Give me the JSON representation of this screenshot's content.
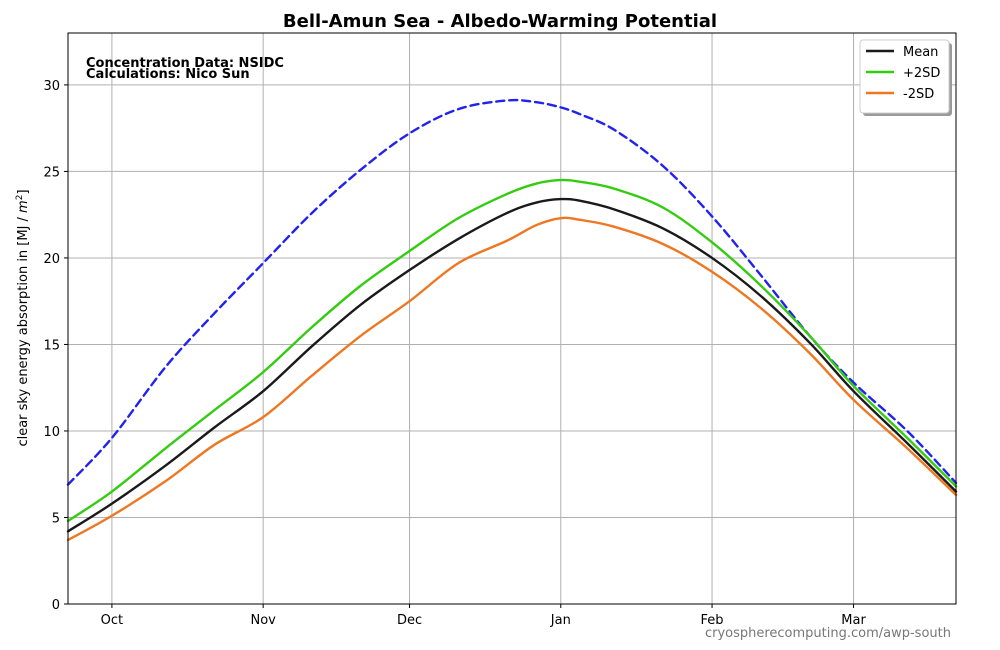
{
  "chart_data": {
    "type": "line",
    "title": "Bell-Amun Sea - Albedo-Warming Potential",
    "ylabel": "clear sky energy absorption in  [MJ / m²]",
    "xlabel": "",
    "ylim": [
      0,
      33
    ],
    "yticks": [
      0,
      5,
      10,
      15,
      20,
      25,
      30
    ],
    "x_day_range": [
      -6,
      176
    ],
    "x_ticks": [
      {
        "label": "Oct",
        "day": 3
      },
      {
        "label": "Nov",
        "day": 34
      },
      {
        "label": "Dec",
        "day": 64
      },
      {
        "label": "Jan",
        "day": 95
      },
      {
        "label": "Feb",
        "day": 126
      },
      {
        "label": "Mar",
        "day": 155
      }
    ],
    "grid": true,
    "legend_position": "top-right",
    "series": [
      {
        "name": "Mean",
        "color": "#1a1a1a",
        "style": "solid",
        "x": [
          -6,
          3,
          14,
          24,
          34,
          44,
          54,
          64,
          74,
          84,
          90,
          95,
          99,
          106,
          116,
          126,
          136,
          146,
          155,
          166,
          176
        ],
        "values": [
          4.2,
          5.8,
          8.0,
          10.2,
          12.3,
          14.9,
          17.3,
          19.3,
          21.1,
          22.6,
          23.2,
          23.4,
          23.3,
          22.8,
          21.7,
          20.0,
          17.8,
          15.1,
          12.3,
          9.3,
          6.5
        ]
      },
      {
        "name": "+2SD",
        "color": "#33cc11",
        "style": "solid",
        "x": [
          -6,
          3,
          14,
          24,
          34,
          44,
          54,
          64,
          74,
          84,
          90,
          95,
          99,
          106,
          116,
          126,
          136,
          146,
          155,
          166,
          176
        ],
        "values": [
          4.8,
          6.5,
          9.0,
          11.2,
          13.4,
          16.0,
          18.4,
          20.4,
          22.3,
          23.7,
          24.3,
          24.5,
          24.4,
          24.0,
          22.9,
          20.9,
          18.4,
          15.5,
          12.6,
          9.6,
          6.8
        ]
      },
      {
        "name": "-2SD",
        "color": "#ee7722",
        "style": "solid",
        "x": [
          -6,
          3,
          14,
          24,
          34,
          44,
          54,
          64,
          74,
          84,
          90,
          95,
          99,
          106,
          116,
          126,
          136,
          146,
          155,
          166,
          176
        ],
        "values": [
          3.7,
          5.1,
          7.1,
          9.2,
          10.8,
          13.2,
          15.5,
          17.5,
          19.7,
          21.0,
          21.9,
          22.3,
          22.2,
          21.8,
          20.8,
          19.2,
          17.1,
          14.5,
          11.8,
          9.0,
          6.3
        ]
      },
      {
        "name": "",
        "color": "#2222ee",
        "style": "dashed",
        "x": [
          -6,
          3,
          14,
          24,
          34,
          44,
          54,
          64,
          74,
          84,
          90,
          95,
          99,
          106,
          116,
          126,
          136,
          146,
          155,
          166,
          176
        ],
        "values": [
          6.9,
          9.6,
          13.7,
          16.8,
          19.7,
          22.6,
          25.1,
          27.2,
          28.6,
          29.1,
          29.0,
          28.7,
          28.3,
          27.4,
          25.3,
          22.4,
          19.0,
          15.5,
          12.8,
          10.0,
          7.0
        ]
      }
    ],
    "annotations": [
      {
        "text": "Concentration Data: NSIDC"
      },
      {
        "text": "Calculations: Nico Sun"
      },
      {
        "text": "cryospherecomputing.com/awp-south"
      }
    ]
  }
}
